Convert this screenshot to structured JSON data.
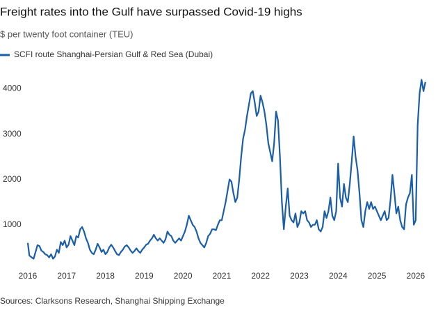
{
  "chart_data": {
    "type": "line",
    "title": "Freight rates into the Gulf have surpassed Covid-19 highs",
    "subtitle": "$ per twenty foot container (TEU)",
    "source": "Sources: Clarksons Research, Shanghai Shipping Exchange",
    "legend_position": "top-left",
    "grid": false,
    "xlim": [
      2015.95,
      2026.45
    ],
    "xticks": [
      2016,
      2017,
      2018,
      2019,
      2020,
      2021,
      2022,
      2023,
      2024,
      2025,
      2026
    ],
    "ylim": [
      150,
      4300
    ],
    "yticks": [
      1000,
      2000,
      3000,
      4000
    ],
    "x": [
      2016.0,
      2016.04,
      2016.1,
      2016.15,
      2016.2,
      2016.25,
      2016.3,
      2016.35,
      2016.4,
      2016.45,
      2016.5,
      2016.55,
      2016.6,
      2016.65,
      2016.7,
      2016.75,
      2016.8,
      2016.85,
      2016.9,
      2016.95,
      2017.0,
      2017.05,
      2017.1,
      2017.15,
      2017.2,
      2017.25,
      2017.3,
      2017.35,
      2017.4,
      2017.45,
      2017.5,
      2017.55,
      2017.6,
      2017.65,
      2017.7,
      2017.75,
      2017.8,
      2017.85,
      2017.9,
      2017.95,
      2018.0,
      2018.05,
      2018.1,
      2018.15,
      2018.2,
      2018.25,
      2018.3,
      2018.35,
      2018.4,
      2018.45,
      2018.5,
      2018.55,
      2018.6,
      2018.65,
      2018.7,
      2018.75,
      2018.8,
      2018.85,
      2018.9,
      2018.95,
      2019.0,
      2019.05,
      2019.1,
      2019.15,
      2019.2,
      2019.25,
      2019.3,
      2019.35,
      2019.4,
      2019.45,
      2019.5,
      2019.55,
      2019.6,
      2019.65,
      2019.7,
      2019.75,
      2019.8,
      2019.85,
      2019.9,
      2019.95,
      2020.0,
      2020.05,
      2020.1,
      2020.15,
      2020.2,
      2020.25,
      2020.3,
      2020.35,
      2020.4,
      2020.45,
      2020.5,
      2020.55,
      2020.6,
      2020.65,
      2020.7,
      2020.75,
      2020.8,
      2020.85,
      2020.9,
      2020.95,
      2021.0,
      2021.05,
      2021.1,
      2021.15,
      2021.2,
      2021.25,
      2021.3,
      2021.35,
      2021.4,
      2021.45,
      2021.5,
      2021.55,
      2021.6,
      2021.65,
      2021.7,
      2021.75,
      2021.8,
      2021.85,
      2021.9,
      2021.95,
      2022.0,
      2022.05,
      2022.1,
      2022.15,
      2022.2,
      2022.25,
      2022.3,
      2022.35,
      2022.4,
      2022.45,
      2022.5,
      2022.55,
      2022.6,
      2022.65,
      2022.7,
      2022.75,
      2022.8,
      2022.85,
      2022.9,
      2022.95,
      2023.0,
      2023.05,
      2023.1,
      2023.15,
      2023.2,
      2023.25,
      2023.3,
      2023.35,
      2023.4,
      2023.45,
      2023.5,
      2023.55,
      2023.6,
      2023.65,
      2023.7,
      2023.75,
      2023.8,
      2023.85,
      2023.9,
      2023.95,
      2024.0,
      2024.05,
      2024.1,
      2024.15,
      2024.2,
      2024.25,
      2024.3,
      2024.35,
      2024.4,
      2024.45,
      2024.5,
      2024.55,
      2024.6,
      2024.65,
      2024.7,
      2024.75,
      2024.8,
      2024.85,
      2024.9,
      2024.95,
      2025.0,
      2025.05,
      2025.1,
      2025.15,
      2025.2,
      2025.25,
      2025.3,
      2025.35,
      2025.4,
      2025.45,
      2025.5,
      2025.55,
      2025.6,
      2025.65,
      2025.7,
      2025.75,
      2025.8,
      2025.85,
      2025.9,
      2025.95,
      2026.0,
      2026.05,
      2026.1,
      2026.15,
      2026.2,
      2026.25
    ],
    "series": [
      {
        "name": "SCFI route Shanghai-Persian Gulf & Red Sea (Dubai)",
        "color": "#1a5ea8",
        "values": [
          600,
          320,
          280,
          250,
          400,
          550,
          530,
          430,
          400,
          350,
          330,
          280,
          350,
          250,
          300,
          450,
          380,
          620,
          550,
          650,
          500,
          560,
          750,
          650,
          550,
          750,
          720,
          900,
          950,
          850,
          700,
          600,
          450,
          380,
          350,
          450,
          580,
          500,
          400,
          450,
          350,
          400,
          500,
          560,
          500,
          420,
          350,
          330,
          400,
          450,
          520,
          550,
          500,
          430,
          380,
          420,
          480,
          420,
          380,
          450,
          500,
          560,
          580,
          650,
          700,
          780,
          700,
          650,
          700,
          650,
          600,
          680,
          850,
          780,
          750,
          650,
          600,
          650,
          700,
          650,
          750,
          850,
          1000,
          1200,
          1100,
          1000,
          950,
          850,
          700,
          600,
          550,
          500,
          600,
          750,
          800,
          900,
          900,
          880,
          1000,
          1100,
          1100,
          1300,
          1500,
          1750,
          2000,
          1950,
          1700,
          1500,
          1600,
          2000,
          2500,
          2900,
          3100,
          3400,
          3650,
          3900,
          3950,
          3700,
          3400,
          3500,
          3850,
          3700,
          3500,
          3200,
          2800,
          2600,
          2400,
          2800,
          3500,
          3300,
          2500,
          1500,
          900,
          1400,
          1800,
          1200,
          1100,
          1050,
          1250,
          950,
          1050,
          1300,
          1250,
          1300,
          1100,
          1050,
          950,
          1000,
          1000,
          1100,
          900,
          850,
          950,
          1300,
          1150,
          1300,
          1600,
          1200,
          1100,
          1300,
          2350,
          1600,
          1400,
          1900,
          1600,
          1500,
          1900,
          2400,
          2950,
          2500,
          2200,
          1700,
          1100,
          950,
          1300,
          1500,
          1350,
          1500,
          1350,
          1400,
          1300,
          1200,
          1100,
          1200,
          1300,
          1100,
          1150,
          1550,
          2100,
          1700,
          1250,
          1400,
          1100,
          950,
          900,
          1450,
          1600,
          1700,
          2100,
          1000,
          1100,
          3200,
          3900,
          4200,
          3950,
          4150
        ]
      }
    ]
  }
}
